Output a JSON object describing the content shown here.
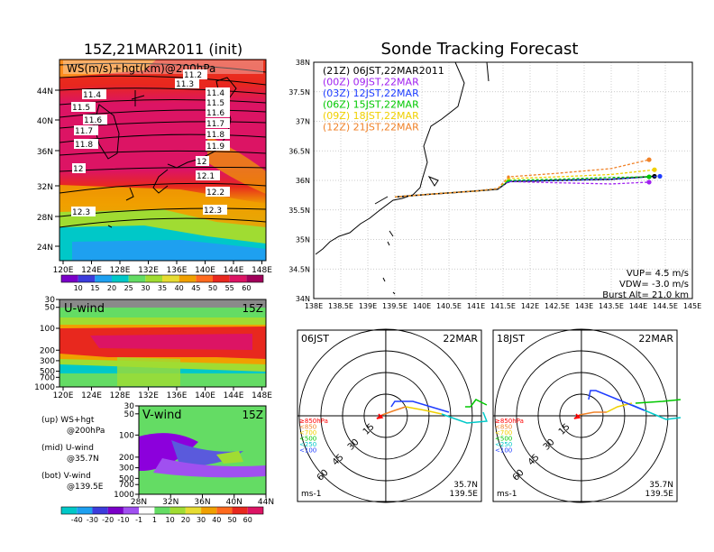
{
  "left_title": "15Z,21MAR2011 (init)",
  "main_title": "Sonde Tracking Forecast",
  "ws_panel": {
    "title": "WS(m/s)+hgt(km)@200hPa",
    "lat_labels": [
      "44N",
      "40N",
      "36N",
      "32N",
      "28N",
      "24N"
    ],
    "lon_labels": [
      "120E",
      "124E",
      "128E",
      "132E",
      "136E",
      "140E",
      "144E",
      "148E"
    ],
    "contour_labels": [
      "11.2",
      "11.3",
      "11.4",
      "11.4",
      "11.5",
      "11.5",
      "11.6",
      "11.6",
      "11.7",
      "11.7",
      "11.8",
      "11.8",
      "11.9",
      "12",
      "12",
      "12.1",
      "12.2",
      "12.3",
      "12.3"
    ],
    "colorbar": [
      "10",
      "15",
      "20",
      "25",
      "30",
      "35",
      "40",
      "45",
      "50",
      "55",
      "60"
    ]
  },
  "u_panel": {
    "title": "U-wind",
    "time": "15Z",
    "p_labels": [
      "30",
      "50",
      "100",
      "200",
      "300",
      "500",
      "700",
      "1000"
    ],
    "lon_labels": [
      "120E",
      "124E",
      "128E",
      "132E",
      "136E",
      "140E",
      "144E",
      "148E"
    ]
  },
  "v_panel": {
    "title": "V-wind",
    "time": "15Z",
    "p_labels": [
      "30",
      "50",
      "100",
      "200",
      "300",
      "500",
      "700",
      "1000"
    ],
    "lat_labels": [
      "28N",
      "32N",
      "36N",
      "40N",
      "44N"
    ],
    "colorbar": [
      "-40",
      "-30",
      "-20",
      "-10",
      "-1",
      "1",
      "10",
      "20",
      "30",
      "40",
      "50",
      "60"
    ]
  },
  "legend_notes": [
    {
      "line1": "(up) WS+hgt",
      "line2": "@200hPa"
    },
    {
      "line1": "(mid) U-wind",
      "line2": "@35.7N"
    },
    {
      "line1": "(bot) V-wind",
      "line2": "@139.5E"
    }
  ],
  "track_panel": {
    "lat_labels": [
      "38N",
      "37.5N",
      "37N",
      "36.5N",
      "36N",
      "35.5N",
      "35N",
      "34.5N",
      "34N"
    ],
    "lon_labels": [
      "138E",
      "138.5E",
      "139E",
      "139.5E",
      "140E",
      "140.5E",
      "141E",
      "141.5E",
      "142E",
      "142.5E",
      "143E",
      "143.5E",
      "144E",
      "144.5E",
      "145E"
    ],
    "info": [
      "VUP= 4.5 m/s",
      "VDW= -3.0 m/s",
      "Burst Alt= 21.0 km"
    ]
  },
  "chart_data": {
    "type": "line",
    "title": "Sonde Tracking Forecast",
    "xlim": [
      138,
      145
    ],
    "ylim": [
      34,
      38
    ],
    "grid": true,
    "legend_placement": "top-left",
    "series": [
      {
        "name": "(21Z) 06JST,22MAR2011",
        "color": "#000000",
        "x": [
          139.5,
          140.2,
          141.0,
          141.4,
          141.6,
          142.5,
          143.5,
          144.3
        ],
        "y": [
          35.72,
          35.77,
          35.82,
          35.85,
          35.98,
          36.0,
          36.02,
          36.07
        ]
      },
      {
        "name": "(00Z) 09JST,22MAR",
        "color": "#a020f0",
        "x": [
          139.5,
          140.2,
          141.0,
          141.4,
          141.6,
          142.5,
          143.5,
          144.2
        ],
        "y": [
          35.72,
          35.77,
          35.82,
          35.86,
          35.98,
          35.96,
          35.94,
          35.97
        ]
      },
      {
        "name": "(03Z) 12JST,22MAR",
        "color": "#1e3cff",
        "x": [
          139.5,
          140.2,
          141.0,
          141.4,
          141.6,
          142.5,
          143.5,
          144.4
        ],
        "y": [
          35.72,
          35.77,
          35.82,
          35.86,
          35.99,
          36.0,
          36.02,
          36.07
        ]
      },
      {
        "name": "(06Z) 15JST,22MAR",
        "color": "#00c800",
        "x": [
          139.5,
          140.2,
          141.0,
          141.4,
          141.6,
          142.5,
          143.5,
          144.2
        ],
        "y": [
          35.72,
          35.77,
          35.82,
          35.86,
          36.0,
          36.02,
          36.05,
          36.06
        ]
      },
      {
        "name": "(09Z) 18JST,22MAR",
        "color": "#f0d000",
        "x": [
          139.5,
          140.2,
          141.0,
          141.4,
          141.6,
          142.5,
          143.5,
          144.3
        ],
        "y": [
          35.72,
          35.77,
          35.82,
          35.86,
          36.03,
          36.06,
          36.1,
          36.18
        ]
      },
      {
        "name": "(12Z) 21JST,22MAR",
        "color": "#f08228",
        "x": [
          139.5,
          140.2,
          141.0,
          141.4,
          141.6,
          142.5,
          143.5,
          144.2
        ],
        "y": [
          35.72,
          35.77,
          35.82,
          35.86,
          36.06,
          36.12,
          36.2,
          36.35
        ]
      }
    ]
  },
  "hodographs": [
    {
      "time": "06JST",
      "date": "22MAR",
      "rings": [
        "15",
        "30",
        "45",
        "60"
      ],
      "levels": [
        "≥850hPa",
        "<850",
        "<700",
        "<500",
        "<250",
        "<100"
      ],
      "level_colors": [
        "#ff0000",
        "#f08228",
        "#f0d000",
        "#00c800",
        "#00c8c8",
        "#1e3cff"
      ],
      "unit": "ms-1",
      "lat": "35.7N",
      "lon": "139.5E"
    },
    {
      "time": "18JST",
      "date": "22MAR",
      "rings": [
        "15",
        "30",
        "45",
        "60"
      ],
      "levels": [
        "≥850hPa",
        "<850",
        "<700",
        "<500",
        "<250",
        "<100"
      ],
      "level_colors": [
        "#ff0000",
        "#f08228",
        "#f0d000",
        "#00c800",
        "#00c8c8",
        "#1e3cff"
      ],
      "unit": "ms-1",
      "lat": "35.7N",
      "lon": "139.5E"
    }
  ]
}
